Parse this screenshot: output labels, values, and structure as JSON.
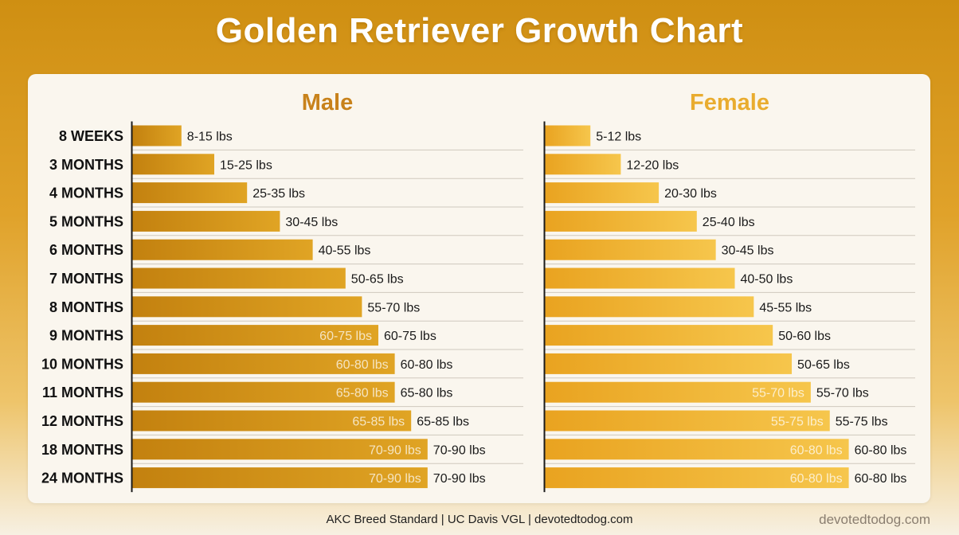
{
  "title": "Golden Retriever Growth Chart",
  "footer": {
    "sources": "AKC Breed Standard | UC Davis VGL | devotedtodog.com",
    "watermark": "devotedtodog.com"
  },
  "colors": {
    "male_title": "#c8821b",
    "female_title": "#e9ac2f",
    "male_bar_dark": "#c3810f",
    "male_bar_light": "#e0a424",
    "female_bar_dark": "#e9a320",
    "female_bar_light": "#f6c64c"
  },
  "chart_data": [
    {
      "type": "bar",
      "orientation": "horizontal",
      "title": "Male",
      "categories": [
        "8 WEEKS",
        "3 MONTHS",
        "4 MONTHS",
        "5 MONTHS",
        "6 MONTHS",
        "7 MONTHS",
        "8 MONTHS",
        "9 MONTHS",
        "10 MONTHS",
        "11 MONTHS",
        "12 MONTHS",
        "18 MONTHS",
        "24 MONTHS"
      ],
      "values": [
        15,
        25,
        35,
        45,
        55,
        65,
        70,
        75,
        80,
        80,
        85,
        90,
        90
      ],
      "labels": [
        "8-15 lbs",
        "15-25 lbs",
        "25-35 lbs",
        "30-45 lbs",
        "40-55 lbs",
        "50-65 lbs",
        "55-70 lbs",
        "60-75 lbs",
        "60-80 lbs",
        "65-80 lbs",
        "65-85 lbs",
        "70-90 lbs",
        "70-90 lbs"
      ],
      "inner_labels": [
        "",
        "",
        "",
        "",
        "",
        "",
        "",
        "60-75 lbs",
        "60-80 lbs",
        "65-80 lbs",
        "65-85 lbs",
        "70-90 lbs",
        "70-90 lbs"
      ],
      "xlabel": "",
      "ylabel": "",
      "xlim": [
        0,
        100
      ]
    },
    {
      "type": "bar",
      "orientation": "horizontal",
      "title": "Female",
      "categories": [
        "8 WEEKS",
        "3 MONTHS",
        "4 MONTHS",
        "5 MONTHS",
        "6 MONTHS",
        "7 MONTHS",
        "8 MONTHS",
        "9 MONTHS",
        "10 MONTHS",
        "11 MONTHS",
        "12 MONTHS",
        "18 MONTHS",
        "24 MONTHS"
      ],
      "values": [
        12,
        20,
        30,
        40,
        45,
        50,
        55,
        60,
        65,
        70,
        75,
        80,
        80
      ],
      "labels": [
        "5-12 lbs",
        "12-20 lbs",
        "20-30 lbs",
        "25-40 lbs",
        "30-45 lbs",
        "40-50 lbs",
        "45-55 lbs",
        "50-60 lbs",
        "50-65 lbs",
        "55-70 lbs",
        "55-75 lbs",
        "60-80 lbs",
        "60-80 lbs"
      ],
      "inner_labels": [
        "",
        "",
        "",
        "",
        "",
        "",
        "",
        "",
        "",
        "55-70 lbs",
        "55-75 lbs",
        "60-80 lbs",
        "60-80 lbs"
      ],
      "xlabel": "",
      "ylabel": "",
      "xlim": [
        0,
        100
      ]
    }
  ]
}
